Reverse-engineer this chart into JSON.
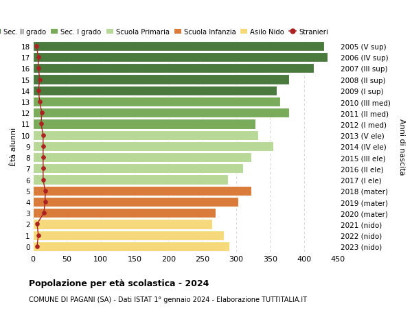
{
  "ages": [
    18,
    17,
    16,
    15,
    14,
    13,
    12,
    11,
    10,
    9,
    8,
    7,
    6,
    5,
    4,
    3,
    2,
    1,
    0
  ],
  "years_labels": [
    "2005 (V sup)",
    "2006 (IV sup)",
    "2007 (III sup)",
    "2008 (II sup)",
    "2009 (I sup)",
    "2010 (III med)",
    "2011 (II med)",
    "2012 (I med)",
    "2013 (V ele)",
    "2014 (IV ele)",
    "2015 (III ele)",
    "2016 (II ele)",
    "2017 (I ele)",
    "2018 (mater)",
    "2019 (mater)",
    "2020 (mater)",
    "2021 (nido)",
    "2022 (nido)",
    "2023 (nido)"
  ],
  "bar_values": [
    430,
    435,
    415,
    378,
    360,
    365,
    378,
    328,
    332,
    355,
    322,
    310,
    288,
    322,
    303,
    270,
    265,
    282,
    290
  ],
  "stranieri_values": [
    5,
    8,
    8,
    10,
    8,
    10,
    13,
    12,
    15,
    15,
    15,
    15,
    15,
    18,
    18,
    16,
    6,
    8,
    6
  ],
  "bar_colors": [
    "#4a7a3d",
    "#4a7a3d",
    "#4a7a3d",
    "#4a7a3d",
    "#4a7a3d",
    "#7aab5a",
    "#7aab5a",
    "#7aab5a",
    "#b8d898",
    "#b8d898",
    "#b8d898",
    "#b8d898",
    "#b8d898",
    "#d97b3a",
    "#d97b3a",
    "#d97b3a",
    "#f5d97a",
    "#f5d97a",
    "#f5d97a"
  ],
  "legend_colors": {
    "Sec. II grado": "#4a7a3d",
    "Sec. I grado": "#7aab5a",
    "Scuola Primaria": "#b8d898",
    "Scuola Infanzia": "#d97b3a",
    "Asilo Nido": "#f5d97a",
    "Stranieri": "#aa2222"
  },
  "ylabel_left": "Ètà alunni",
  "ylabel_right": "Anni di nascita",
  "xlim": [
    0,
    450
  ],
  "xticks": [
    0,
    50,
    100,
    150,
    200,
    250,
    300,
    350,
    400,
    450
  ],
  "title_bold": "Popolazione per età scolastica - 2024",
  "subtitle": "COMUNE DI PAGANI (SA) - Dati ISTAT 1° gennaio 2024 - Elaborazione TUTTITALIA.IT",
  "background_color": "#ffffff",
  "bar_edgecolor": "#ffffff",
  "grid_color": "#cccccc"
}
